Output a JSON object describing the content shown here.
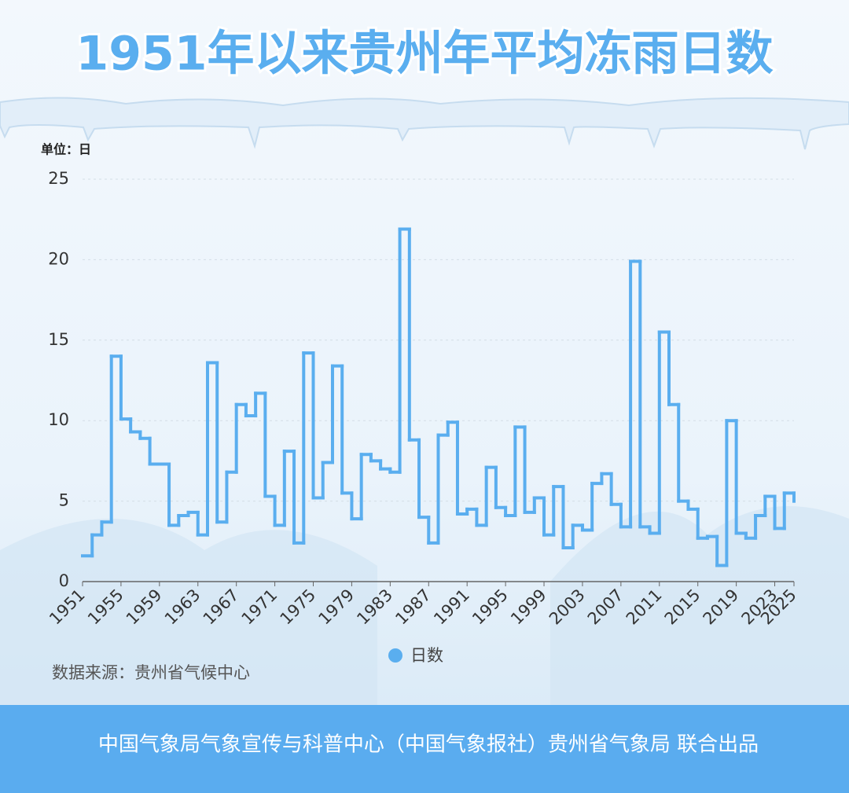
{
  "chart_data": {
    "type": "step",
    "title": "1951年以来贵州年平均冻雨日数",
    "y_label": "单位：日",
    "x": [
      1951,
      1952,
      1953,
      1954,
      1955,
      1956,
      1957,
      1958,
      1959,
      1960,
      1961,
      1962,
      1963,
      1964,
      1965,
      1966,
      1967,
      1968,
      1969,
      1970,
      1971,
      1972,
      1973,
      1974,
      1975,
      1976,
      1977,
      1978,
      1979,
      1980,
      1981,
      1982,
      1983,
      1984,
      1985,
      1986,
      1987,
      1988,
      1989,
      1990,
      1991,
      1992,
      1993,
      1994,
      1995,
      1996,
      1997,
      1998,
      1999,
      2000,
      2001,
      2002,
      2003,
      2004,
      2005,
      2006,
      2007,
      2008,
      2009,
      2010,
      2011,
      2012,
      2013,
      2014,
      2015,
      2016,
      2017,
      2018,
      2019,
      2020,
      2021,
      2022,
      2023,
      2024,
      2025
    ],
    "series": [
      {
        "name": "日数",
        "color": "#5aaeef",
        "values": [
          1.6,
          2.9,
          3.7,
          14.0,
          10.1,
          9.3,
          8.9,
          7.3,
          7.3,
          3.5,
          4.1,
          4.3,
          2.9,
          13.6,
          3.7,
          6.8,
          11.0,
          10.3,
          11.7,
          5.3,
          3.5,
          8.1,
          2.4,
          14.2,
          5.2,
          7.4,
          13.4,
          5.5,
          3.9,
          7.9,
          7.5,
          7.0,
          6.8,
          21.9,
          8.8,
          4.0,
          2.4,
          9.1,
          9.9,
          4.2,
          4.5,
          3.5,
          7.1,
          4.6,
          4.1,
          9.6,
          4.3,
          5.2,
          2.9,
          5.9,
          2.1,
          3.5,
          3.2,
          6.1,
          6.7,
          4.8,
          3.4,
          19.9,
          3.4,
          3.0,
          15.5,
          11.0,
          5.0,
          4.5,
          2.7,
          2.8,
          1.0,
          10.0,
          3.0,
          2.7,
          4.1,
          5.3,
          3.3,
          5.5,
          5.0
        ]
      }
    ],
    "xlim": [
      1951,
      2025
    ],
    "xticks": [
      1951,
      1955,
      1959,
      1963,
      1967,
      1971,
      1975,
      1979,
      1983,
      1987,
      1991,
      1995,
      1999,
      2003,
      2007,
      2011,
      2015,
      2019,
      2023,
      2025
    ],
    "ylim": [
      0,
      25
    ],
    "yticks": [
      0,
      5,
      10,
      15,
      20,
      25
    ],
    "grid": true
  },
  "source": "数据来源：贵州省气候中心",
  "footer": "中国气象局气象宣传与科普中心（中国气象报社）贵州省气象局 联合出品"
}
